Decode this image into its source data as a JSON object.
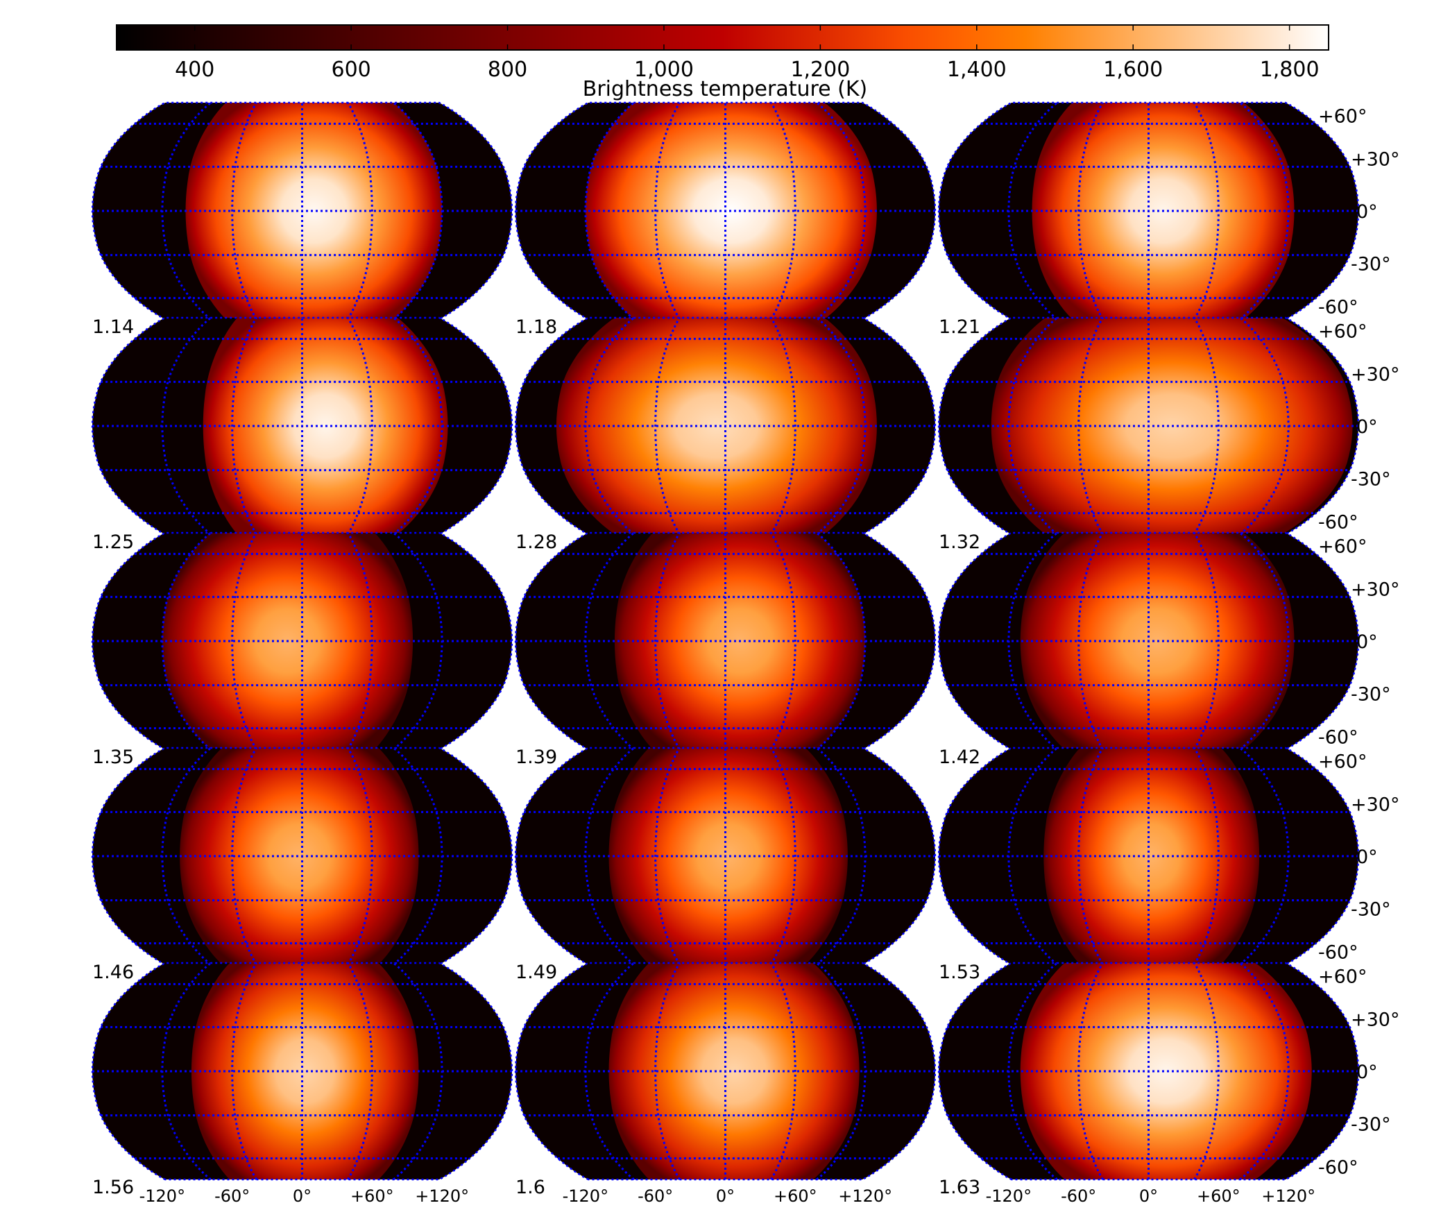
{
  "chart_data": {
    "type": "heatmap",
    "projection": "Robinson",
    "colormap": "gist_heat",
    "colorbar": {
      "label": "Brightness temperature (K)",
      "vmin": 300,
      "vmax": 1850,
      "ticks": [
        "400",
        "600",
        "800",
        "1,000",
        "1,200",
        "1,400",
        "1,600",
        "1,800"
      ],
      "tick_values": [
        400,
        600,
        800,
        1000,
        1200,
        1400,
        1600,
        1800
      ],
      "placement": "top"
    },
    "grid": true,
    "grid_color": "#0000ff",
    "lat_ticks": [
      "+60°",
      "+30°",
      "0°",
      "-30°",
      "-60°"
    ],
    "lat_values": [
      60,
      30,
      0,
      -30,
      -60
    ],
    "lon_ticks": [
      "-120°",
      "-60°",
      "0°",
      "+60°",
      "+120°"
    ],
    "lon_values": [
      -120,
      -60,
      0,
      60,
      120
    ],
    "panels": [
      {
        "label": "1.14",
        "lit_west_lon": -100,
        "lit_east_lon": 120,
        "peak_temp": 1830
      },
      {
        "label": "1.18",
        "lit_west_lon": -120,
        "lit_east_lon": 130,
        "peak_temp": 1850
      },
      {
        "label": "1.21",
        "lit_west_lon": -100,
        "lit_east_lon": 125,
        "peak_temp": 1820
      },
      {
        "label": "1.25",
        "lit_west_lon": -85,
        "lit_east_lon": 125,
        "peak_temp": 1820
      },
      {
        "label": "1.28",
        "lit_west_lon": -145,
        "lit_east_lon": 130,
        "peak_temp": 1750
      },
      {
        "label": "1.32",
        "lit_west_lon": -135,
        "lit_east_lon": 175,
        "peak_temp": 1720
      },
      {
        "label": "1.35",
        "lit_west_lon": -120,
        "lit_east_lon": 95,
        "peak_temp": 1620
      },
      {
        "label": "1.39",
        "lit_west_lon": -95,
        "lit_east_lon": 120,
        "peak_temp": 1620
      },
      {
        "label": "1.42",
        "lit_west_lon": -110,
        "lit_east_lon": 125,
        "peak_temp": 1620
      },
      {
        "label": "1.46",
        "lit_west_lon": -105,
        "lit_east_lon": 100,
        "peak_temp": 1620
      },
      {
        "label": "1.49",
        "lit_west_lon": -100,
        "lit_east_lon": 105,
        "peak_temp": 1620
      },
      {
        "label": "1.53",
        "lit_west_lon": -90,
        "lit_east_lon": 95,
        "peak_temp": 1620
      },
      {
        "label": "1.56",
        "lit_west_lon": -95,
        "lit_east_lon": 100,
        "peak_temp": 1720
      },
      {
        "label": "1.6",
        "lit_west_lon": -100,
        "lit_east_lon": 115,
        "peak_temp": 1720
      },
      {
        "label": "1.63",
        "lit_west_lon": -110,
        "lit_east_lon": 140,
        "peak_temp": 1820
      }
    ]
  }
}
